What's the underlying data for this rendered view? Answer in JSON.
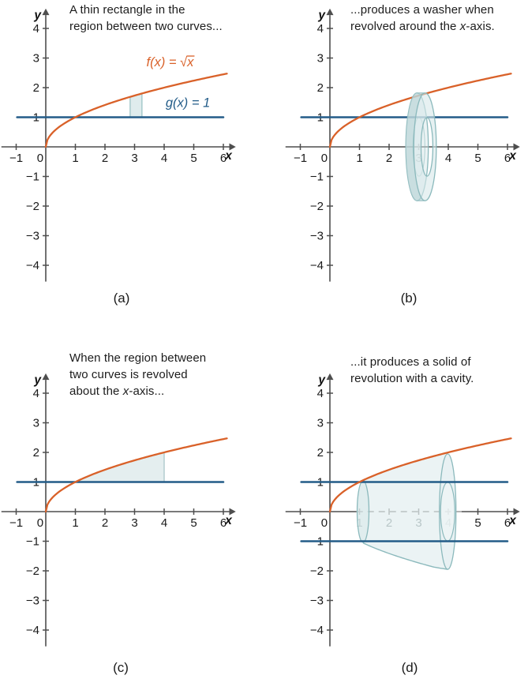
{
  "colors": {
    "background": "#ffffff",
    "curve_f": "#d96129",
    "curve_g": "#235c88",
    "axis": "#4e4e4e",
    "tick_label": "#1a1a1a",
    "faded_tick_label": "#98a4a5",
    "teal_stroke": "#8bb9bc",
    "teal_fill": "#d7e8ea",
    "teal_fill_dark": "#b7d2d5",
    "region_fill": "#e3edee",
    "rect_fill": "#d9e9ea",
    "dashed_hidden_edge": "#9b9b9b",
    "caption_text": "#1c1c1c"
  },
  "chart_data": [
    {
      "type": "line",
      "panel_id": "a",
      "panel_label": "(a)",
      "caption_lines": [
        [
          {
            "t": "A thin rectangle in the"
          }
        ],
        [
          {
            "t": "region between two curves..."
          }
        ]
      ],
      "xlabel": "x",
      "ylabel": "y",
      "xticks": [
        -1,
        0,
        1,
        2,
        3,
        4,
        5,
        6
      ],
      "yticks": [
        -4,
        -3,
        -2,
        -1,
        1,
        2,
        3,
        4
      ],
      "xlim": [
        -1.5,
        6.55
      ],
      "ylim": [
        -4.55,
        4.7
      ],
      "series": [
        {
          "name": "g",
          "label": "g(x) = 1",
          "expr": "1",
          "domain": [
            -0.97,
            6.0
          ],
          "color_key": "curve_g",
          "label_anchor": {
            "x": 4.05,
            "y": 1.35
          }
        },
        {
          "name": "f",
          "label": "f(x) = √x",
          "expr": "sqrt(x)",
          "domain": [
            0,
            6.12
          ],
          "color_key": "curve_f",
          "label_anchor": {
            "x": 3.4,
            "y": 2.72
          },
          "points_on_f": [
            [
              0,
              0
            ],
            [
              1,
              1
            ],
            [
              4,
              2
            ],
            [
              6,
              2.45
            ]
          ]
        }
      ],
      "features": {
        "thin_rectangle": {
          "x0": 2.85,
          "x1": 3.25,
          "y_base": 1,
          "y_top": "sqrt(x)"
        }
      },
      "key_points": {
        "curve_intersection": [
          1,
          1
        ]
      }
    },
    {
      "type": "line",
      "panel_id": "b",
      "panel_label": "(b)",
      "caption_lines": [
        [
          {
            "t": "...produces a washer when"
          }
        ],
        [
          {
            "t": "revolved around the "
          },
          {
            "t": "x",
            "i": true
          },
          {
            "t": "-axis."
          }
        ]
      ],
      "xlabel": "x",
      "ylabel": "y",
      "xticks": [
        -1,
        0,
        1,
        2,
        3,
        4,
        5,
        6
      ],
      "yticks": [
        -4,
        -3,
        -2,
        -1,
        1,
        2,
        3,
        4
      ],
      "xlim": [
        -1.5,
        6.55
      ],
      "ylim": [
        -4.55,
        4.7
      ],
      "faded_xticks": [
        3
      ],
      "series": [
        {
          "name": "g",
          "label": "g(x) = 1",
          "expr": "1",
          "domain": [
            -0.97,
            6.0
          ],
          "color_key": "curve_g"
        },
        {
          "name": "f",
          "label": "f(x) = √x",
          "expr": "sqrt(x)",
          "domain": [
            0,
            6.12
          ],
          "color_key": "curve_f"
        }
      ],
      "features": {
        "washer": {
          "x_center": 3.2,
          "thickness": 0.27,
          "outer_radius": 1.82,
          "inner_radius": 1.0,
          "revolved_about": "x-axis"
        }
      }
    },
    {
      "type": "line",
      "panel_id": "c",
      "panel_label": "(c)",
      "caption_lines": [
        [
          {
            "t": "When the region between"
          }
        ],
        [
          {
            "t": "two curves is revolved"
          }
        ],
        [
          {
            "t": "about the "
          },
          {
            "t": "x",
            "i": true
          },
          {
            "t": "-axis..."
          }
        ]
      ],
      "xlabel": "x",
      "ylabel": "y",
      "xticks": [
        -1,
        0,
        1,
        2,
        3,
        4,
        5,
        6
      ],
      "yticks": [
        -4,
        -3,
        -2,
        -1,
        1,
        2,
        3,
        4
      ],
      "xlim": [
        -1.5,
        6.55
      ],
      "ylim": [
        -4.55,
        4.7
      ],
      "series": [
        {
          "name": "g",
          "label": "g(x) = 1",
          "expr": "1",
          "domain": [
            -0.97,
            6.0
          ],
          "color_key": "curve_g"
        },
        {
          "name": "f",
          "label": "f(x) = √x",
          "expr": "sqrt(x)",
          "domain": [
            0,
            6.12
          ],
          "color_key": "curve_f"
        }
      ],
      "features": {
        "region": {
          "x0": 1,
          "x1": 4,
          "lower": "1",
          "upper": "sqrt(x)"
        }
      },
      "key_points": {
        "curve_intersection": [
          1,
          1
        ],
        "right_edge_top": [
          4,
          2
        ]
      }
    },
    {
      "type": "line",
      "panel_id": "d",
      "panel_label": "(d)",
      "caption_lines": [
        [
          {
            "t": "...it produces a solid of"
          }
        ],
        [
          {
            "t": "revolution with a cavity."
          }
        ]
      ],
      "xlabel": "x",
      "ylabel": "y",
      "xticks": [
        -1,
        0,
        1,
        2,
        3,
        4,
        5,
        6
      ],
      "yticks": [
        -4,
        -3,
        -2,
        -1,
        1,
        2,
        3,
        4
      ],
      "xlim": [
        -1.5,
        6.55
      ],
      "ylim": [
        -4.55,
        4.7
      ],
      "faded_xticks": [
        1,
        2,
        3,
        4
      ],
      "hidden_axis_dashed": [
        0.9,
        4.45
      ],
      "series": [
        {
          "name": "g",
          "label": "g(x) = 1",
          "expr": "1",
          "domain": [
            -0.97,
            6.0
          ],
          "color_key": "curve_g"
        },
        {
          "name": "g_reflected",
          "label": "",
          "expr": "-1",
          "domain": [
            -0.97,
            6.0
          ],
          "color_key": "curve_g"
        },
        {
          "name": "f",
          "label": "f(x) = √x",
          "expr": "sqrt(x)",
          "domain": [
            0,
            6.12
          ],
          "color_key": "curve_f"
        }
      ],
      "features": {
        "solid_with_cavity": {
          "x0": 1.12,
          "x1": 3.98,
          "outer": "sqrt(x)",
          "inner_radius": 1.0,
          "end_disk_radius": 2.0
        }
      }
    }
  ]
}
